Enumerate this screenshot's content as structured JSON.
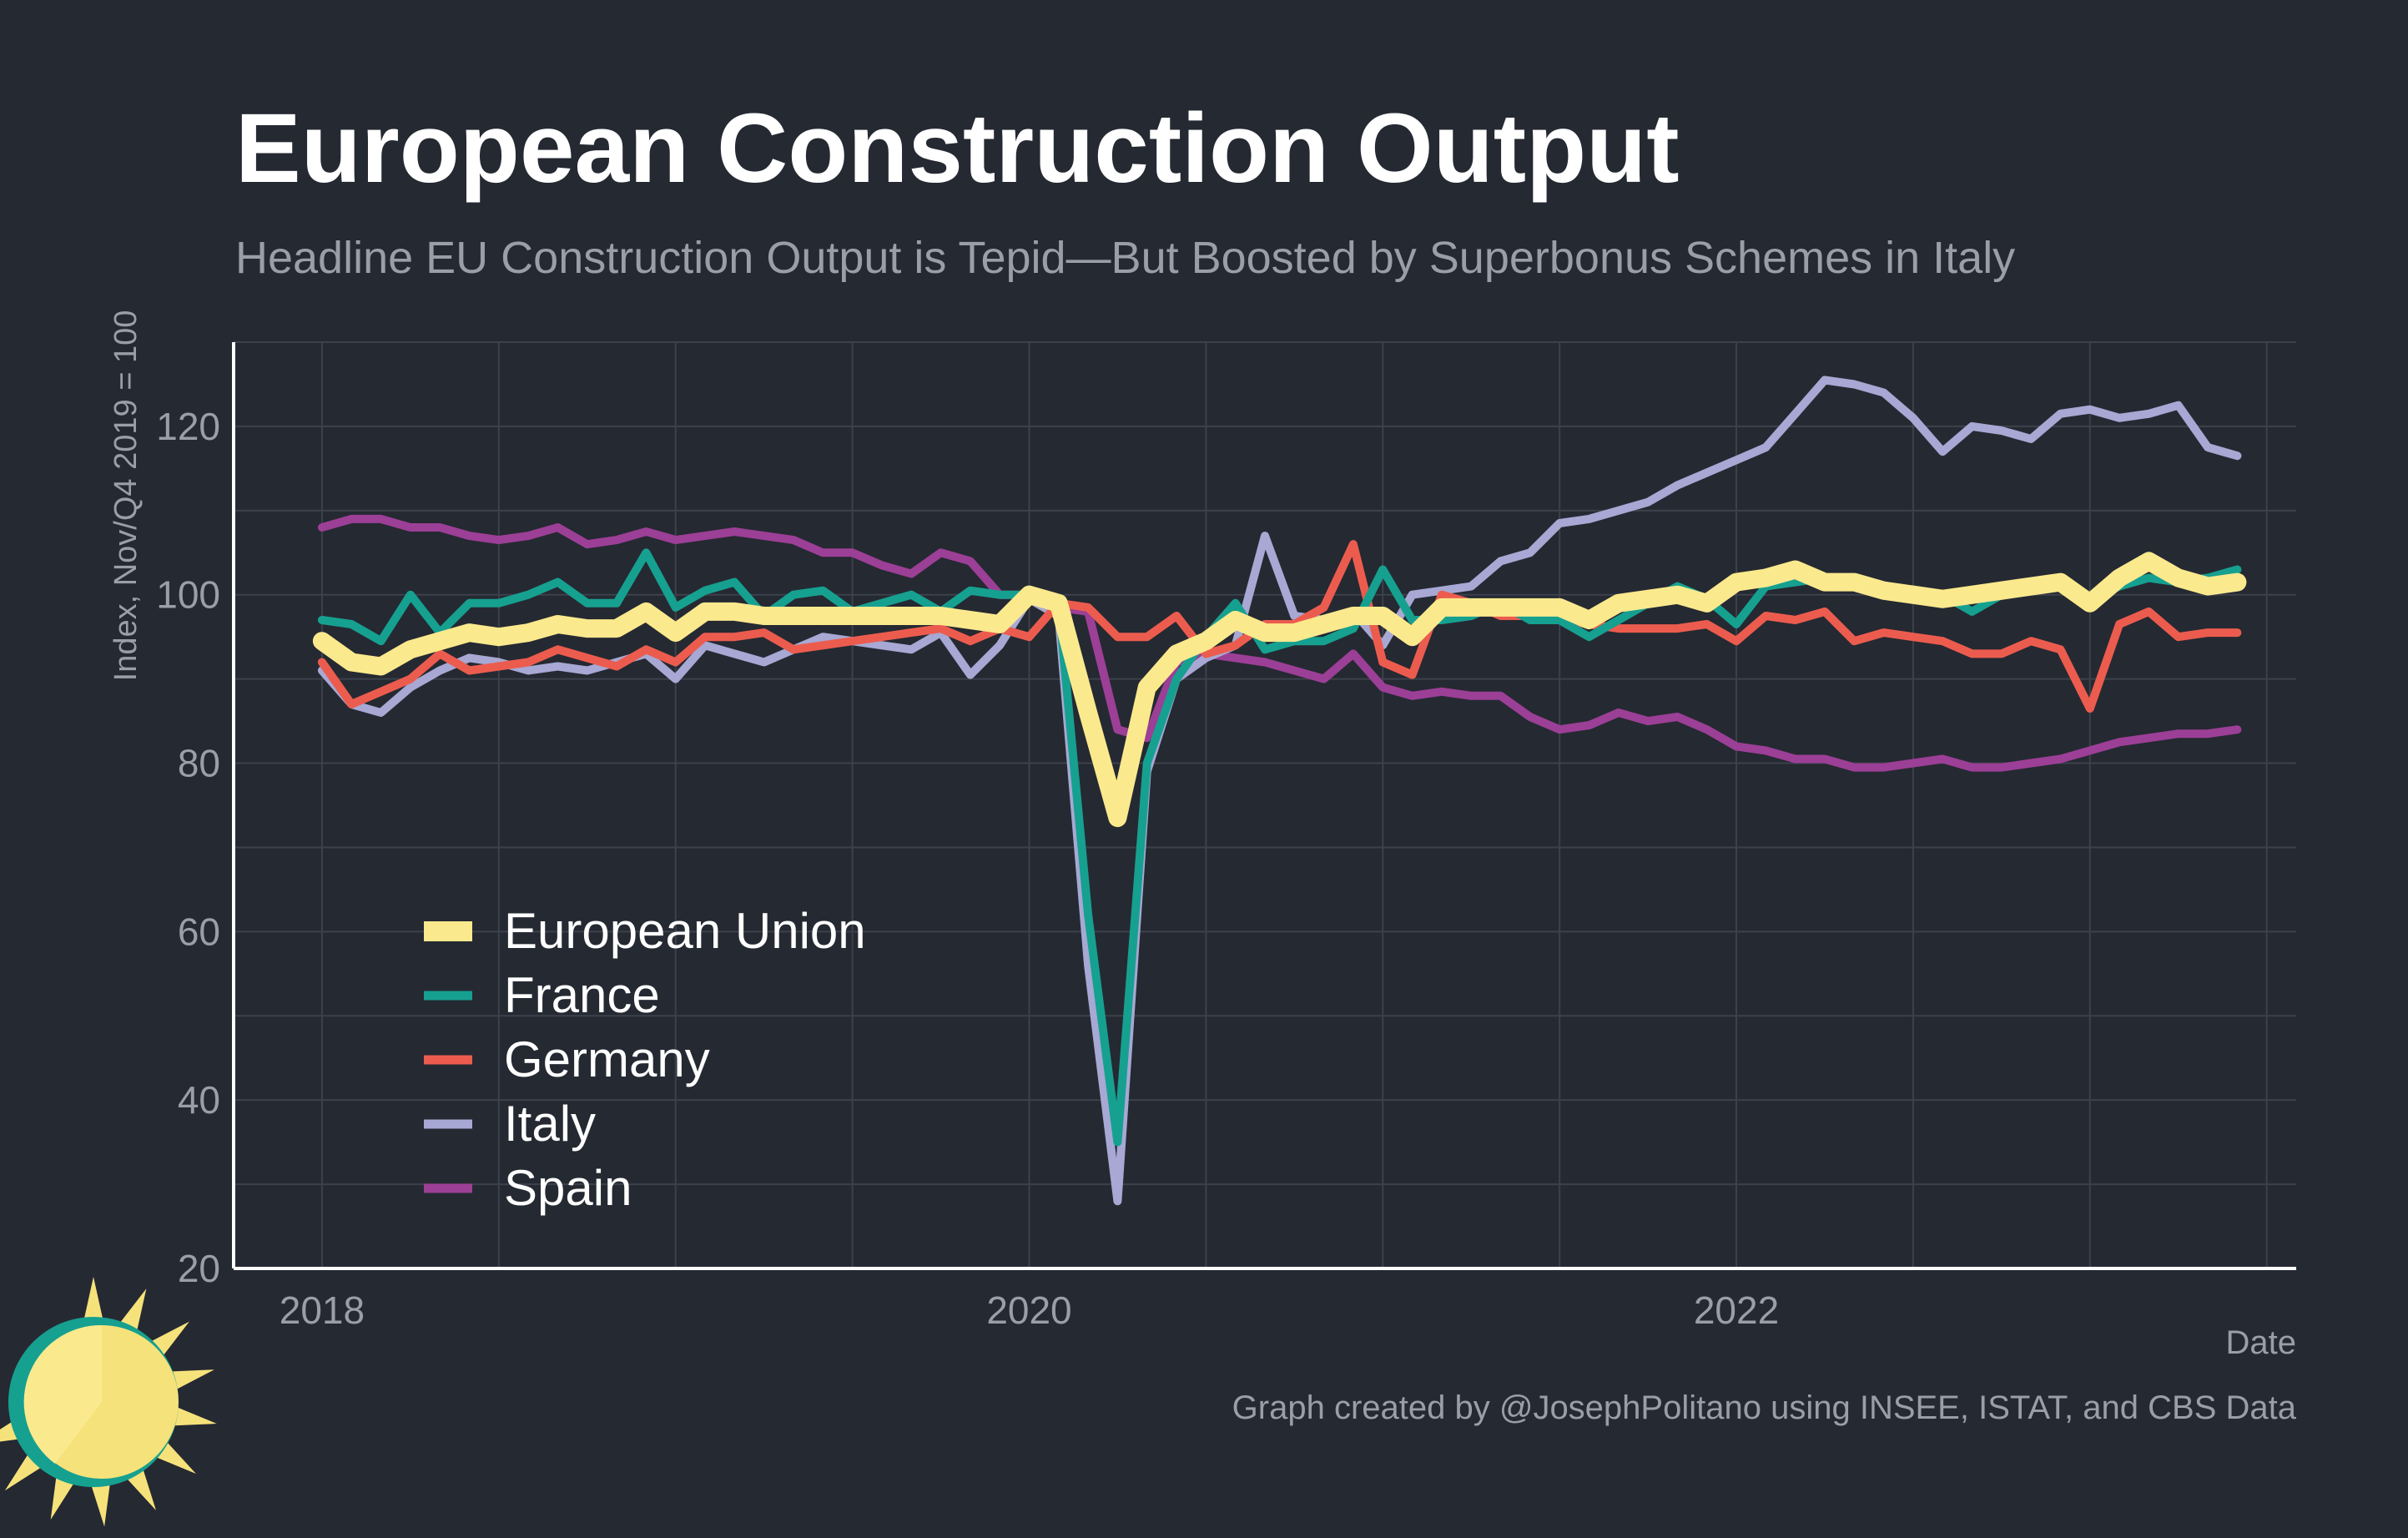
{
  "chart_data": {
    "type": "line",
    "title": "European Construction Output",
    "subtitle": "Headline EU Construction Output is Tepid—But Boosted by Superbonus Schemes in Italy",
    "xlabel": "Date",
    "ylabel": "Index, Nov/Q4 2019 = 100",
    "caption": "Graph created by @JosephPolitano using INSEE, ISTAT, and CBS Data",
    "xlim": [
      "2017-10",
      "2023-08"
    ],
    "ylim": [
      20,
      130
    ],
    "x_ticks": [
      "2018",
      "2020",
      "2022"
    ],
    "y_ticks": [
      20,
      40,
      60,
      80,
      100,
      120
    ],
    "grid": true,
    "legend_position": "bottom-left",
    "x": [
      "2018-01",
      "2018-02",
      "2018-03",
      "2018-04",
      "2018-05",
      "2018-06",
      "2018-07",
      "2018-08",
      "2018-09",
      "2018-10",
      "2018-11",
      "2018-12",
      "2019-01",
      "2019-02",
      "2019-03",
      "2019-04",
      "2019-05",
      "2019-06",
      "2019-07",
      "2019-08",
      "2019-09",
      "2019-10",
      "2019-11",
      "2019-12",
      "2020-01",
      "2020-02",
      "2020-03",
      "2020-04",
      "2020-05",
      "2020-06",
      "2020-07",
      "2020-08",
      "2020-09",
      "2020-10",
      "2020-11",
      "2020-12",
      "2021-01",
      "2021-02",
      "2021-03",
      "2021-04",
      "2021-05",
      "2021-06",
      "2021-07",
      "2021-08",
      "2021-09",
      "2021-10",
      "2021-11",
      "2021-12",
      "2022-01",
      "2022-02",
      "2022-03",
      "2022-04",
      "2022-05",
      "2022-06",
      "2022-07",
      "2022-08",
      "2022-09",
      "2022-10",
      "2022-11",
      "2022-12",
      "2023-01",
      "2023-02",
      "2023-03",
      "2023-04",
      "2023-05",
      "2023-06"
    ],
    "series": [
      {
        "name": "Spain",
        "color": "#9c3f96",
        "values": [
          108,
          109,
          109,
          108,
          108,
          107,
          106.5,
          107,
          108,
          106,
          106.5,
          107.5,
          106.5,
          107,
          107.5,
          107,
          106.5,
          105,
          105,
          103.5,
          102.5,
          105,
          104,
          100,
          100,
          98.5,
          98,
          84,
          83,
          92,
          93,
          92.5,
          92,
          91,
          90,
          93,
          89,
          88,
          88.5,
          88,
          88,
          85.5,
          84,
          84.5,
          86,
          85,
          85.5,
          84,
          82,
          81.5,
          80.5,
          80.5,
          79.5,
          79.5,
          80,
          80.5,
          79.5,
          79.5,
          80,
          80.5,
          81.5,
          82.5,
          83,
          83.5,
          83.5,
          84
        ]
      },
      {
        "name": "Italy",
        "color": "#a7a8d3",
        "values": [
          91,
          87,
          86,
          89,
          91,
          92.5,
          92,
          91,
          91.5,
          91,
          92,
          93,
          90,
          94,
          93,
          92,
          93.5,
          95,
          94.5,
          94,
          93.5,
          95.5,
          90.5,
          94,
          99.5,
          97.5,
          56,
          28,
          79,
          90,
          92.5,
          94,
          107,
          97.5,
          97,
          98,
          94,
          100,
          100.5,
          101,
          104,
          105,
          108.5,
          109,
          110,
          111,
          113,
          114.5,
          116,
          117.5,
          121.5,
          125.5,
          125,
          124,
          121,
          117,
          120,
          119.5,
          118.5,
          121.5,
          122,
          121,
          121.5,
          122.5,
          117.5,
          116.5
        ]
      },
      {
        "name": "Germany",
        "color": "#ec5c4e",
        "values": [
          92,
          87,
          88.5,
          90,
          93,
          91,
          91.5,
          92,
          93.5,
          92.5,
          91.5,
          93.5,
          92,
          95,
          95,
          95.5,
          93.5,
          94,
          94.5,
          95,
          95.5,
          96,
          94.5,
          96,
          95,
          99,
          98.5,
          95,
          95,
          97.5,
          93,
          94,
          96.5,
          96.5,
          98.5,
          106,
          92,
          90.5,
          100,
          99,
          97.5,
          97.5,
          97,
          96.5,
          96,
          96,
          96,
          96.5,
          94.5,
          97.5,
          97,
          98,
          94.5,
          95.5,
          95,
          94.5,
          93,
          93,
          94.5,
          93.5,
          86.5,
          96.5,
          98,
          95,
          95.5,
          95.5
        ]
      },
      {
        "name": "France",
        "color": "#16a090",
        "values": [
          97,
          96.5,
          94.5,
          100,
          95.5,
          99,
          99,
          100,
          101.5,
          99,
          99,
          105,
          98.5,
          100.5,
          101.5,
          97.5,
          100,
          100.5,
          98,
          99,
          100,
          98,
          100.5,
          100,
          100,
          99,
          62,
          35,
          80,
          90,
          95,
          99,
          93.5,
          94.5,
          94.5,
          96,
          103,
          97,
          97,
          97.5,
          99,
          97,
          97,
          95,
          97,
          99,
          101,
          99.5,
          96.5,
          101,
          101.5,
          102,
          101,
          100.5,
          100,
          100,
          98,
          100,
          101,
          101.5,
          99.5,
          101,
          102,
          101.5,
          102,
          103
        ]
      },
      {
        "name": "European Union",
        "color": "#fbe98d",
        "values": [
          94.5,
          92,
          91.5,
          93.5,
          94.5,
          95.5,
          95,
          95.5,
          96.5,
          96,
          96,
          98,
          95.5,
          98,
          98,
          97.5,
          97.5,
          97.5,
          97.5,
          97.5,
          97.5,
          97.5,
          97,
          96.5,
          100,
          99,
          86,
          73.5,
          89,
          93,
          94.5,
          97,
          95.5,
          95.5,
          96.5,
          97.5,
          97.5,
          95,
          98.5,
          98.5,
          98.5,
          98.5,
          98.5,
          97,
          99,
          99.5,
          100,
          99,
          101.5,
          102,
          103,
          101.5,
          101.5,
          100.5,
          100,
          99.5,
          100,
          100.5,
          101,
          101.5,
          99,
          102,
          104,
          102,
          101,
          101.5
        ]
      }
    ]
  },
  "legend": {
    "items": [
      "European Union",
      "France",
      "Germany",
      "Italy",
      "Spain"
    ]
  },
  "logo": {
    "icon": "sun-icon",
    "colors": [
      "#f6e27a",
      "#fbe98d",
      "#16a090"
    ]
  }
}
